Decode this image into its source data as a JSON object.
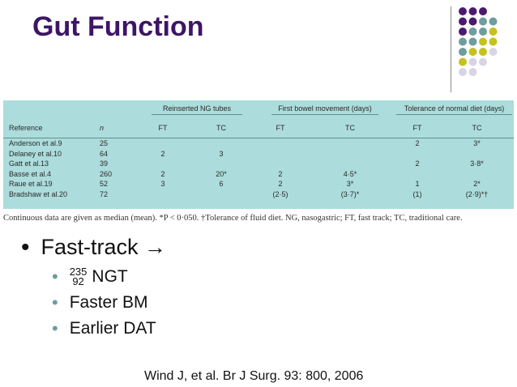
{
  "slide": {
    "title": "Gut Function",
    "colors": {
      "title": "#3d1566",
      "panel": "#acdcdc",
      "purple": "#4b1a6e",
      "teal": "#6e9d9d",
      "olive": "#c4c21c",
      "lavender": "#d8d4e6"
    }
  },
  "decoration": {
    "dot_rows": [
      [
        "purple",
        "purple",
        "purple"
      ],
      [
        "purple",
        "purple",
        "teal",
        "teal"
      ],
      [
        "purple",
        "teal",
        "teal",
        "olive"
      ],
      [
        "teal",
        "teal",
        "olive",
        "olive"
      ],
      [
        "teal",
        "olive",
        "olive",
        "lavender"
      ],
      [
        "olive",
        "lavender",
        "lavender"
      ],
      [
        "lavender",
        "lavender"
      ]
    ]
  },
  "table": {
    "groups": [
      "Reinserted NG tubes",
      "First bowel movement (days)",
      "Tolerance of normal diet (days)"
    ],
    "headers": [
      "Reference",
      "n",
      "FT",
      "TC",
      "FT",
      "TC",
      "FT",
      "TC"
    ],
    "rows": [
      [
        "Anderson et al.9",
        "25",
        "",
        "",
        "",
        "",
        "2",
        "3*"
      ],
      [
        "Delaney et al.10",
        "64",
        "2",
        "3",
        "",
        "",
        "",
        ""
      ],
      [
        "Gatt et al.13",
        "39",
        "",
        "",
        "",
        "",
        "2",
        "3·8*"
      ],
      [
        "Basse et al.4",
        "260",
        "2",
        "20*",
        "2",
        "4·5*",
        "",
        ""
      ],
      [
        "Raue et al.19",
        "52",
        "3",
        "6",
        "2",
        "3*",
        "1",
        "2*"
      ],
      [
        "Bradshaw et al.20",
        "72",
        "",
        "",
        "(2·5)",
        "(3·7)*",
        "(1)",
        "(2·9)*†"
      ]
    ],
    "caption": "Continuous data are given as median (mean). *P < 0·050. †Tolerance of fluid diet. NG, nasogastric; FT, fast track; TC, traditional care."
  },
  "bullets": {
    "main": "Fast-track →",
    "isotope_top": "235",
    "isotope_bottom": "92",
    "sub1": "NGT",
    "sub2": "Faster BM",
    "sub3": "Earlier DAT"
  },
  "citation": "Wind J, et al.  Br J Surg.  93: 800, 2006"
}
